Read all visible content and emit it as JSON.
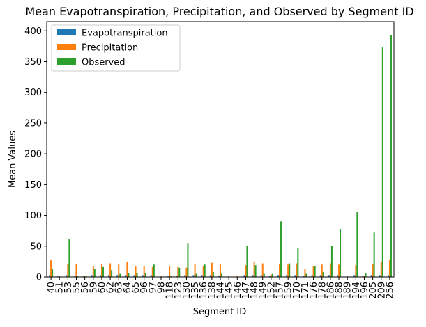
{
  "chart_data": {
    "type": "bar",
    "title": "Mean Evapotranspiration, Precipitation, and Observed by Segment ID",
    "xlabel": "Segment ID",
    "ylabel": "Mean Values",
    "ylim": [
      0,
      415
    ],
    "yticks": [
      0,
      50,
      100,
      150,
      200,
      250,
      300,
      350,
      400
    ],
    "grid": false,
    "legend_position": "top-left",
    "categories": [
      "40",
      "51",
      "53",
      "55",
      "56",
      "59",
      "60",
      "62",
      "63",
      "64",
      "65",
      "96",
      "97",
      "98",
      "118",
      "123",
      "130",
      "135",
      "136",
      "138",
      "144",
      "145",
      "146",
      "147",
      "148",
      "149",
      "152",
      "157",
      "159",
      "170",
      "171",
      "176",
      "178",
      "186",
      "188",
      "189",
      "194",
      "196",
      "205",
      "209",
      "256"
    ],
    "series": [
      {
        "name": "Evapotranspiration",
        "color": "#1f77b4",
        "values": [
          3,
          1,
          3,
          2,
          1,
          3,
          3,
          3,
          3,
          3,
          3,
          3,
          3,
          0.5,
          1,
          2,
          3,
          3,
          3,
          3,
          2,
          0.5,
          0.5,
          3,
          3,
          3,
          2,
          3,
          3,
          3,
          2,
          3,
          3,
          3,
          3,
          0.5,
          3,
          1,
          3,
          3,
          3
        ]
      },
      {
        "name": "Precipitation",
        "color": "#ff7f0e",
        "values": [
          27,
          1,
          21,
          21,
          2,
          18,
          21,
          22,
          21,
          24,
          18,
          18,
          16,
          1,
          18,
          16,
          15,
          21,
          17,
          23,
          21,
          1,
          1,
          19,
          25,
          22,
          4,
          21,
          20,
          22,
          13,
          18,
          20,
          22,
          20,
          1,
          19,
          2,
          21,
          25,
          27
        ]
      },
      {
        "name": "Observed",
        "color": "#2ca02c",
        "values": [
          13,
          0,
          61,
          1,
          1,
          13,
          16,
          11,
          5,
          6,
          6,
          6,
          20,
          0,
          2,
          15,
          55,
          5,
          20,
          8,
          5,
          0,
          0,
          51,
          19,
          5,
          5,
          90,
          22,
          47,
          5,
          18,
          8,
          50,
          78,
          0,
          106,
          6,
          72,
          373,
          393
        ]
      }
    ]
  }
}
